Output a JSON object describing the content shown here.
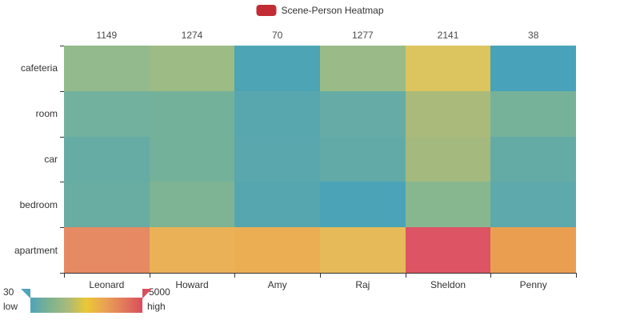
{
  "legend": {
    "label": "Scene-Person Heatmap",
    "marker_color": "#c22d35"
  },
  "visualmap": {
    "min_label": "30",
    "max_label": "5000",
    "low_label": "low",
    "high_label": "high",
    "gradient": [
      "#50a3ba",
      "#7bb290",
      "#a9ba7b",
      "#eac736",
      "#eaa254",
      "#e2795b",
      "#d94e5d"
    ],
    "left_handle_color": "#50a3ba",
    "right_handle_color": "#d94e5d"
  },
  "chart_data": {
    "type": "heatmap",
    "title": "Scene-Person Heatmap",
    "x_categories": [
      "Leonard",
      "Howard",
      "Amy",
      "Raj",
      "Sheldon",
      "Penny"
    ],
    "y_categories": [
      "cafeteria",
      "room",
      "car",
      "bedroom",
      "apartment"
    ],
    "top_axis_values": [
      "1149",
      "1274",
      "70",
      "1277",
      "2141",
      "38"
    ],
    "value_range": [
      30,
      5000
    ],
    "color_range": [
      "#50a3ba",
      "#eac736",
      "#d94e5d"
    ],
    "legend_position": "top",
    "grid": false,
    "cell_colors": [
      [
        "#93ba8c",
        "#9dbb85",
        "#4da4b5",
        "#9abb87",
        "#dcc45e",
        "#48a2b9"
      ],
      [
        "#72b19d",
        "#74b19b",
        "#58a7af",
        "#66aba5",
        "#aaba7a",
        "#76b299"
      ],
      [
        "#66aca4",
        "#74b19b",
        "#5aa8ad",
        "#62aaa8",
        "#a4b97e",
        "#64aba6"
      ],
      [
        "#68aca2",
        "#7eb493",
        "#56a6b0",
        "#4ba3b8",
        "#87b78f",
        "#5da9ab"
      ],
      [
        "#e58a62",
        "#eab156",
        "#ecae52",
        "#e6ba59",
        "#dd5464",
        "#ea9f50"
      ]
    ],
    "values_estimated_from_color_scale": true,
    "estimated_values": [
      [
        1149,
        1274,
        70,
        1277,
        2141,
        38
      ],
      [
        580,
        610,
        160,
        385,
        1480,
        645
      ],
      [
        385,
        610,
        190,
        320,
        1385,
        355
      ],
      [
        420,
        775,
        125,
        40,
        920,
        240
      ],
      [
        3770,
        2970,
        3030,
        2780,
        4880,
        3340
      ]
    ]
  }
}
